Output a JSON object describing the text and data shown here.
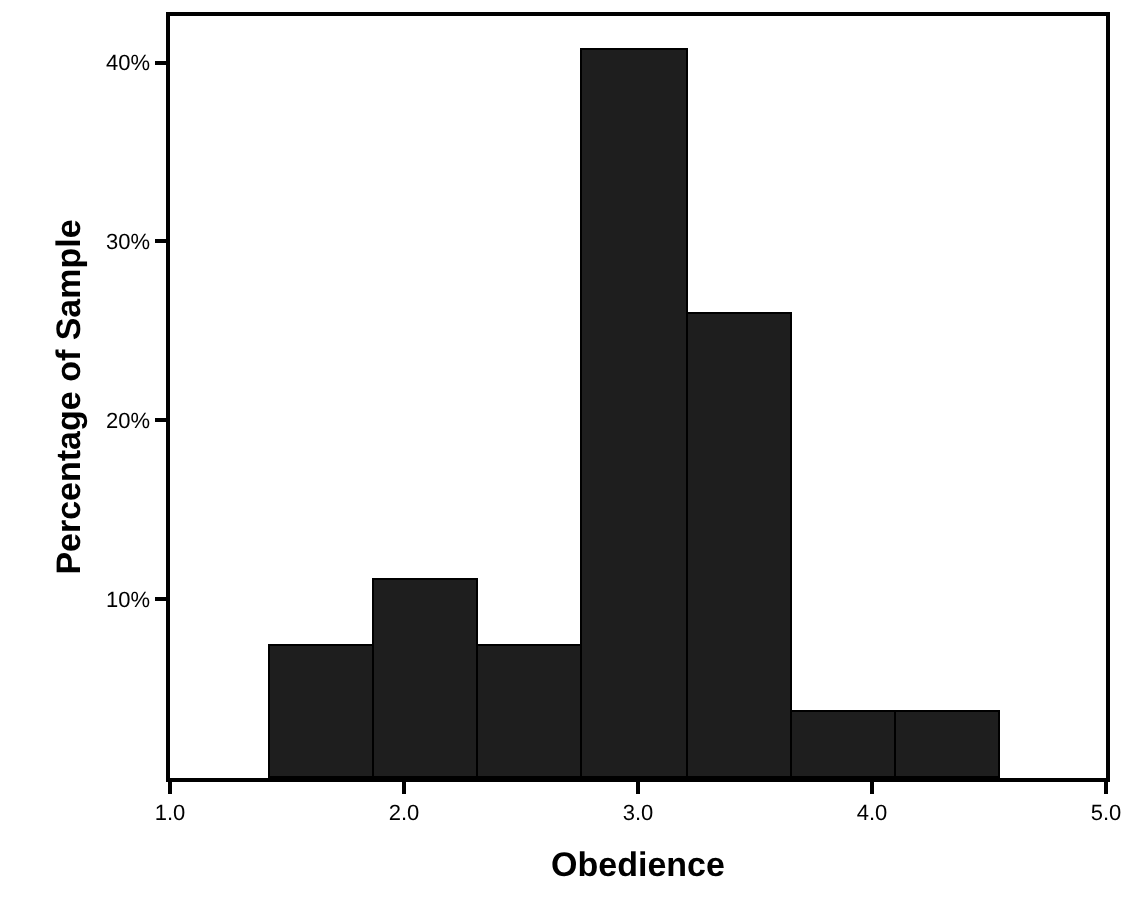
{
  "chart_data": {
    "type": "histogram",
    "xlabel": "Obedience",
    "ylabel": "Percentage of Sample",
    "bins": [
      1.43,
      1.87,
      2.32,
      2.76,
      3.21,
      3.66,
      4.1,
      4.55
    ],
    "values": [
      7.4,
      11.1,
      7.4,
      40.7,
      25.9,
      3.7,
      3.7
    ],
    "color": "#1e1e1e",
    "xlim": [
      1,
      5
    ],
    "xticks": [
      {
        "value": 1,
        "label": "1.0"
      },
      {
        "value": 2,
        "label": "2.0"
      },
      {
        "value": 3,
        "label": "3.0"
      },
      {
        "value": 4,
        "label": "4.0"
      },
      {
        "value": 5,
        "label": "5.0"
      }
    ],
    "ylim": [
      0,
      42.6
    ],
    "yticks": [
      {
        "value": 10,
        "label": "10%"
      },
      {
        "value": 20,
        "label": "20%"
      },
      {
        "value": 30,
        "label": "30%"
      },
      {
        "value": 40,
        "label": "40%"
      }
    ],
    "grid": false
  }
}
